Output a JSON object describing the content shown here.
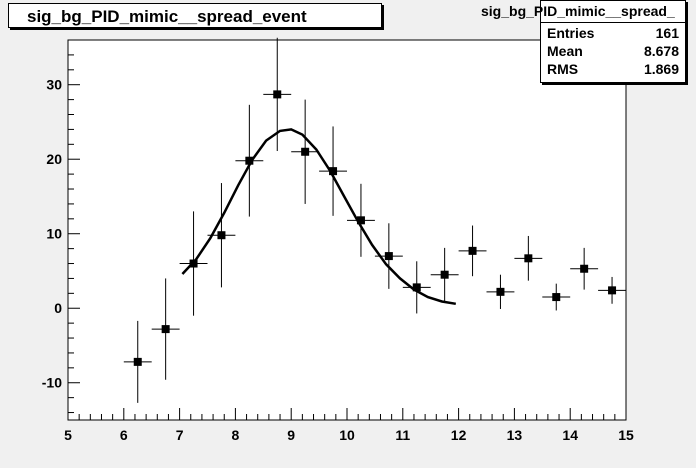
{
  "chart_data": {
    "type": "scatter",
    "title": "sig_bg_PID_mimic__spread_event",
    "stats": {
      "header": "sig_bg_PID_mimic__spread_",
      "rows": [
        {
          "label": "Entries",
          "value": "161"
        },
        {
          "label": "Mean",
          "value": "8.678"
        },
        {
          "label": "RMS",
          "value": "1.869"
        }
      ]
    },
    "xlim": [
      5,
      15
    ],
    "ylim": [
      -15,
      36
    ],
    "x_ticks": [
      "5",
      "6",
      "7",
      "8",
      "9",
      "10",
      "11",
      "12",
      "13",
      "14",
      "15"
    ],
    "y_ticks": [
      "-10",
      "0",
      "10",
      "20",
      "30"
    ],
    "bin_width": 0.5,
    "points": [
      {
        "x": 6.25,
        "y": -7.2,
        "err": 5.5
      },
      {
        "x": 6.75,
        "y": -2.8,
        "err": 6.8
      },
      {
        "x": 7.25,
        "y": 6.0,
        "err": 7.0
      },
      {
        "x": 7.75,
        "y": 9.8,
        "err": 7.0
      },
      {
        "x": 8.25,
        "y": 19.8,
        "err": 7.5
      },
      {
        "x": 8.75,
        "y": 28.7,
        "err": 7.6
      },
      {
        "x": 9.25,
        "y": 21.0,
        "err": 7.0
      },
      {
        "x": 9.75,
        "y": 18.4,
        "err": 6.0
      },
      {
        "x": 10.25,
        "y": 11.8,
        "err": 4.9
      },
      {
        "x": 10.75,
        "y": 7.0,
        "err": 4.4
      },
      {
        "x": 11.25,
        "y": 2.8,
        "err": 3.5
      },
      {
        "x": 11.75,
        "y": 4.5,
        "err": 3.6
      },
      {
        "x": 12.25,
        "y": 7.7,
        "err": 3.4
      },
      {
        "x": 12.75,
        "y": 2.2,
        "err": 2.3
      },
      {
        "x": 13.25,
        "y": 6.7,
        "err": 3.0
      },
      {
        "x": 13.75,
        "y": 1.5,
        "err": 1.8
      },
      {
        "x": 14.25,
        "y": 5.3,
        "err": 2.8
      },
      {
        "x": 14.75,
        "y": 2.4,
        "err": 1.8
      }
    ],
    "fit": {
      "x": [
        7.05,
        7.3,
        7.55,
        7.8,
        8.05,
        8.3,
        8.55,
        8.8,
        9.0,
        9.2,
        9.45,
        9.7,
        9.95,
        10.2,
        10.45,
        10.7,
        10.95,
        11.2,
        11.45,
        11.7,
        11.95
      ],
      "y": [
        4.6,
        6.6,
        9.4,
        12.8,
        16.5,
        19.9,
        22.5,
        23.8,
        24.0,
        23.3,
        21.3,
        18.4,
        15.0,
        11.6,
        8.5,
        5.9,
        4.0,
        2.5,
        1.5,
        0.9,
        0.6
      ]
    }
  }
}
